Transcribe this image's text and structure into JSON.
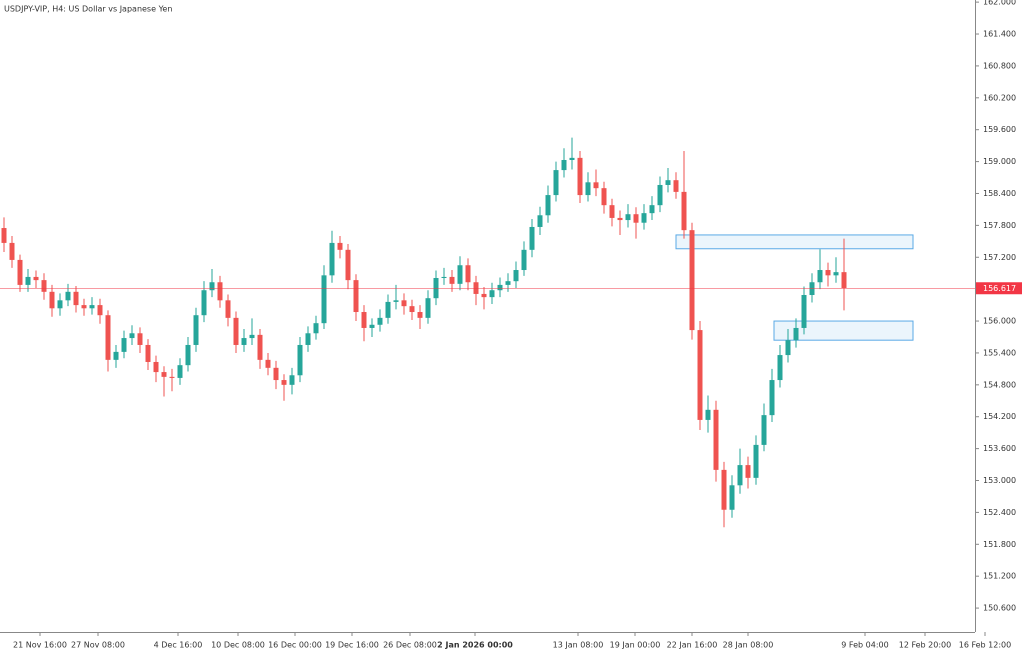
{
  "chart_data": {
    "type": "candlestick",
    "title": "USDJPY-VIP, H4: US Dollar vs Japanese Yen",
    "up_color": "#26a69a",
    "down_color": "#ef5350",
    "zone_color": "#5aa9e6",
    "last_price_color": "#f23645",
    "ylim": [
      150.15,
      162.04
    ],
    "yticks": [
      {
        "value": 162,
        "label": "162.000"
      },
      {
        "value": 161.4,
        "label": "161.400"
      },
      {
        "value": 160.8,
        "label": "160.800"
      },
      {
        "value": 160.2,
        "label": "160.200"
      },
      {
        "value": 159.6,
        "label": "159.600"
      },
      {
        "value": 159,
        "label": "159.000"
      },
      {
        "value": 158.4,
        "label": "158.400"
      },
      {
        "value": 157.8,
        "label": "157.800"
      },
      {
        "value": 157.2,
        "label": "157.200"
      },
      {
        "value": 156.6,
        "label": "156.600"
      },
      {
        "value": 156,
        "label": "156.000"
      },
      {
        "value": 155.4,
        "label": "155.400"
      },
      {
        "value": 154.8,
        "label": "154.800"
      },
      {
        "value": 154.2,
        "label": "154.200"
      },
      {
        "value": 153.6,
        "label": "153.600"
      },
      {
        "value": 153,
        "label": "153.000"
      },
      {
        "value": 152.4,
        "label": "152.400"
      },
      {
        "value": 151.8,
        "label": "151.800"
      },
      {
        "value": 151.2,
        "label": "151.200"
      },
      {
        "value": 150.6,
        "label": "150.600"
      }
    ],
    "xticks": [
      "21 Nov 16:00",
      "27 Nov 08:00",
      "4 Dec 16:00",
      "10 Dec 08:00",
      "16 Dec 00:00",
      "19 Dec 16:00",
      "26 Dec 08:00",
      "2 Jan 2026 00:00",
      "13 Jan 08:00",
      "19 Jan 00:00",
      "22 Jan 16:00",
      "28 Jan 08:00",
      "9 Feb 04:00",
      "12 Feb 20:00",
      "16 Feb 12:00"
    ],
    "last_price": 156.617,
    "zones": [
      {
        "top": 157.62,
        "bottom": 157.36
      },
      {
        "top": 156.0,
        "bottom": 155.64
      }
    ],
    "candles": [
      [
        157.75,
        157.95,
        157.3,
        157.47
      ],
      [
        157.47,
        157.6,
        157.0,
        157.15
      ],
      [
        157.15,
        157.25,
        156.55,
        156.68
      ],
      [
        156.68,
        156.98,
        156.55,
        156.83
      ],
      [
        156.83,
        156.95,
        156.62,
        156.77
      ],
      [
        156.77,
        156.9,
        156.4,
        156.55
      ],
      [
        156.55,
        156.68,
        156.08,
        156.24
      ],
      [
        156.24,
        156.52,
        156.1,
        156.39
      ],
      [
        156.39,
        156.7,
        156.28,
        156.55
      ],
      [
        156.55,
        156.66,
        156.16,
        156.3
      ],
      [
        156.3,
        156.42,
        156.1,
        156.24
      ],
      [
        156.24,
        156.45,
        156.12,
        156.3
      ],
      [
        156.3,
        156.42,
        155.95,
        156.11
      ],
      [
        156.11,
        156.2,
        155.05,
        155.27
      ],
      [
        155.27,
        155.55,
        155.12,
        155.42
      ],
      [
        155.42,
        155.82,
        155.3,
        155.68
      ],
      [
        155.68,
        155.92,
        155.55,
        155.77
      ],
      [
        155.77,
        155.88,
        155.4,
        155.55
      ],
      [
        155.55,
        155.66,
        155.08,
        155.23
      ],
      [
        155.23,
        155.35,
        154.85,
        155.04
      ],
      [
        155.04,
        155.15,
        154.58,
        154.95
      ],
      [
        154.95,
        155.1,
        154.68,
        154.93
      ],
      [
        154.93,
        155.3,
        154.8,
        155.17
      ],
      [
        155.17,
        155.7,
        155.05,
        155.55
      ],
      [
        155.55,
        156.25,
        155.42,
        156.11
      ],
      [
        156.11,
        156.75,
        155.98,
        156.58
      ],
      [
        156.58,
        156.98,
        156.45,
        156.73
      ],
      [
        156.73,
        156.85,
        156.25,
        156.39
      ],
      [
        156.39,
        156.5,
        155.9,
        156.06
      ],
      [
        156.06,
        156.18,
        155.4,
        155.55
      ],
      [
        155.55,
        155.85,
        155.42,
        155.68
      ],
      [
        155.68,
        156.05,
        155.55,
        155.74
      ],
      [
        155.74,
        155.85,
        155.1,
        155.27
      ],
      [
        155.27,
        155.4,
        154.98,
        155.12
      ],
      [
        155.12,
        155.25,
        154.72,
        154.89
      ],
      [
        154.89,
        155.0,
        154.5,
        154.8
      ],
      [
        154.8,
        155.12,
        154.62,
        154.98
      ],
      [
        154.98,
        155.7,
        154.85,
        155.55
      ],
      [
        155.55,
        155.9,
        155.42,
        155.77
      ],
      [
        155.77,
        156.1,
        155.65,
        155.96
      ],
      [
        155.96,
        157.05,
        155.85,
        156.86
      ],
      [
        156.86,
        157.7,
        156.72,
        157.47
      ],
      [
        157.47,
        157.6,
        157.18,
        157.34
      ],
      [
        157.34,
        157.45,
        156.6,
        156.77
      ],
      [
        156.77,
        156.88,
        156.0,
        156.17
      ],
      [
        156.17,
        156.3,
        155.62,
        155.87
      ],
      [
        155.87,
        156.05,
        155.7,
        155.93
      ],
      [
        155.93,
        156.22,
        155.8,
        156.06
      ],
      [
        156.06,
        156.5,
        155.95,
        156.36
      ],
      [
        156.36,
        156.68,
        156.22,
        156.39
      ],
      [
        156.39,
        156.52,
        156.12,
        156.28
      ],
      [
        156.28,
        156.4,
        156.02,
        156.17
      ],
      [
        156.17,
        156.3,
        155.85,
        156.06
      ],
      [
        156.06,
        156.58,
        155.95,
        156.43
      ],
      [
        156.43,
        156.95,
        156.3,
        156.81
      ],
      [
        156.81,
        157.0,
        156.68,
        156.83
      ],
      [
        156.83,
        156.96,
        156.55,
        156.7
      ],
      [
        156.7,
        157.22,
        156.58,
        157.05
      ],
      [
        157.05,
        157.18,
        156.58,
        156.73
      ],
      [
        156.73,
        156.85,
        156.3,
        156.51
      ],
      [
        156.51,
        156.64,
        156.22,
        156.45
      ],
      [
        156.45,
        156.72,
        156.32,
        156.58
      ],
      [
        156.58,
        156.82,
        156.45,
        156.68
      ],
      [
        156.68,
        156.9,
        156.55,
        156.75
      ],
      [
        156.75,
        157.12,
        156.62,
        156.96
      ],
      [
        156.96,
        157.5,
        156.85,
        157.34
      ],
      [
        157.34,
        157.92,
        157.2,
        157.77
      ],
      [
        157.77,
        158.15,
        157.62,
        157.99
      ],
      [
        157.99,
        158.55,
        157.85,
        158.37
      ],
      [
        158.37,
        159.0,
        158.25,
        158.84
      ],
      [
        158.84,
        159.25,
        158.7,
        159.03
      ],
      [
        159.03,
        159.45,
        158.85,
        159.07
      ],
      [
        159.07,
        159.2,
        158.22,
        158.37
      ],
      [
        158.37,
        158.8,
        158.25,
        158.61
      ],
      [
        158.61,
        158.85,
        158.35,
        158.5
      ],
      [
        158.5,
        158.62,
        158.02,
        158.18
      ],
      [
        158.18,
        158.3,
        157.78,
        157.94
      ],
      [
        157.94,
        158.08,
        157.62,
        157.9
      ],
      [
        157.9,
        158.2,
        157.76,
        158.01
      ],
      [
        158.01,
        158.14,
        157.55,
        157.85
      ],
      [
        157.85,
        158.2,
        157.72,
        158.03
      ],
      [
        158.03,
        158.35,
        157.9,
        158.18
      ],
      [
        158.18,
        158.72,
        158.05,
        158.56
      ],
      [
        158.56,
        158.88,
        158.42,
        158.65
      ],
      [
        158.65,
        158.8,
        158.3,
        158.43
      ],
      [
        158.43,
        159.2,
        157.55,
        157.71
      ],
      [
        157.71,
        157.85,
        155.65,
        155.83
      ],
      [
        155.83,
        156.0,
        153.95,
        154.14
      ],
      [
        154.14,
        154.6,
        153.9,
        154.33
      ],
      [
        154.33,
        154.5,
        152.98,
        153.2
      ],
      [
        153.2,
        153.35,
        152.12,
        152.45
      ],
      [
        152.45,
        153.1,
        152.3,
        152.91
      ],
      [
        152.91,
        153.6,
        152.75,
        153.29
      ],
      [
        153.29,
        153.45,
        152.85,
        153.05
      ],
      [
        153.05,
        153.85,
        152.92,
        153.67
      ],
      [
        153.67,
        154.45,
        153.55,
        154.23
      ],
      [
        154.23,
        155.1,
        154.1,
        154.89
      ],
      [
        154.89,
        155.55,
        154.75,
        155.36
      ],
      [
        155.36,
        155.85,
        155.22,
        155.64
      ],
      [
        155.64,
        156.05,
        155.5,
        155.87
      ],
      [
        155.87,
        156.65,
        155.75,
        156.49
      ],
      [
        156.49,
        156.9,
        156.35,
        156.73
      ],
      [
        156.73,
        157.35,
        156.6,
        156.96
      ],
      [
        156.96,
        157.1,
        156.65,
        156.86
      ],
      [
        156.86,
        157.2,
        156.72,
        156.92
      ],
      [
        156.92,
        157.55,
        156.2,
        156.617
      ]
    ]
  }
}
